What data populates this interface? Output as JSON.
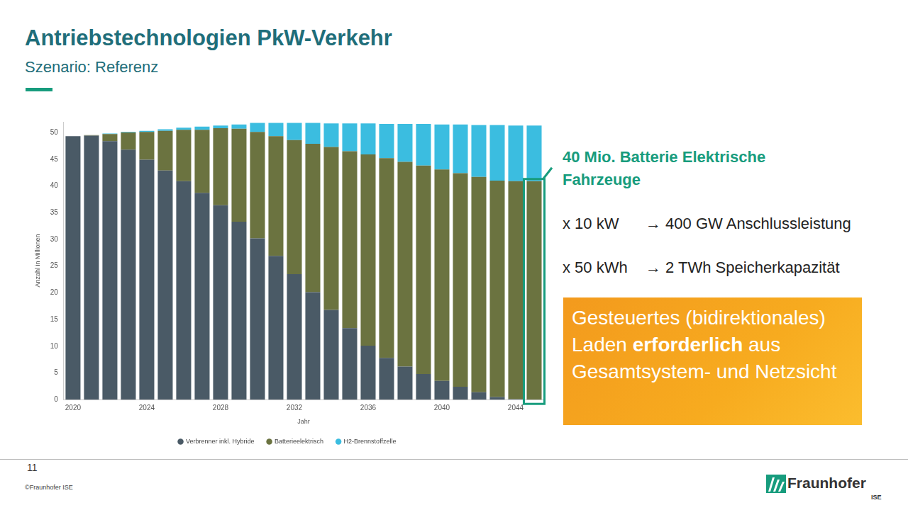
{
  "slide": {
    "title": "Antriebstechnologien PkW-Verkehr",
    "subtitle": "Szenario: Referenz",
    "page_number": "11",
    "copyright": "©Fraunhofer ISE",
    "logo": {
      "name": "Fraunhofer",
      "unit": "ISE"
    }
  },
  "annotations": {
    "headline": "40 Mio. Batterie Elektrische Fahrzeuge",
    "calculations": [
      {
        "left": "x 10 kW",
        "right": "→ 400 GW Anschlussleistung"
      },
      {
        "left": "x 50 kWh",
        "right": "→ 2 TWh Speicherkapazität"
      }
    ],
    "callout": {
      "before": "Gesteuertes (bidirektionales) Laden",
      "emphasized": "erforderlich",
      "after": "aus Gesamtsystem- und Netzsicht"
    }
  },
  "chart_data": {
    "type": "bar",
    "stacked": true,
    "grid": false,
    "legend": "bottom",
    "x_label": "Jahr",
    "y_label": "Anzahl in Millionen",
    "categories": [
      "2020",
      null,
      null,
      null,
      "2024",
      null,
      null,
      null,
      "2028",
      null,
      null,
      null,
      "2032",
      null,
      null,
      null,
      "2036",
      null,
      null,
      null,
      "2040",
      null,
      null,
      null,
      "2044",
      null
    ],
    "ylim": [
      0,
      52
    ],
    "yticks": [
      0,
      5,
      10,
      15,
      20,
      25,
      30,
      35,
      40,
      45,
      50
    ],
    "series": [
      {
        "name": "Verbrenner inkl. Hybride",
        "color": "#4a5a66",
        "values": [
          49.3,
          49.4,
          48.4,
          46.8,
          44.9,
          42.9,
          40.9,
          38.7,
          36.4,
          33.3,
          30.2,
          26.9,
          23.5,
          20.1,
          16.8,
          13.4,
          10.1,
          7.8,
          6.2,
          4.8,
          3.5,
          2.4,
          1.4,
          0.5,
          0.1,
          0
        ]
      },
      {
        "name": "Batterieelektrisch",
        "color": "#6b7340",
        "values": [
          0,
          0.1,
          1.3,
          3.2,
          5.2,
          7.4,
          9.6,
          11.8,
          14.4,
          17.4,
          19.9,
          22.4,
          25.1,
          27.8,
          30.5,
          33.1,
          35.8,
          37.4,
          38.3,
          39.0,
          39.6,
          40.0,
          40.3,
          40.5,
          40.8,
          40.9
        ]
      },
      {
        "name": "H2-Brennstoffzelle",
        "color": "#3bbde0",
        "values": [
          0,
          0,
          0.1,
          0.1,
          0.2,
          0.3,
          0.4,
          0.6,
          0.5,
          0.8,
          1.7,
          2.5,
          3.2,
          3.9,
          4.4,
          5.2,
          5.8,
          6.4,
          7.1,
          7.8,
          8.4,
          9.1,
          9.7,
          10.4,
          10.4,
          10.4
        ]
      }
    ]
  }
}
